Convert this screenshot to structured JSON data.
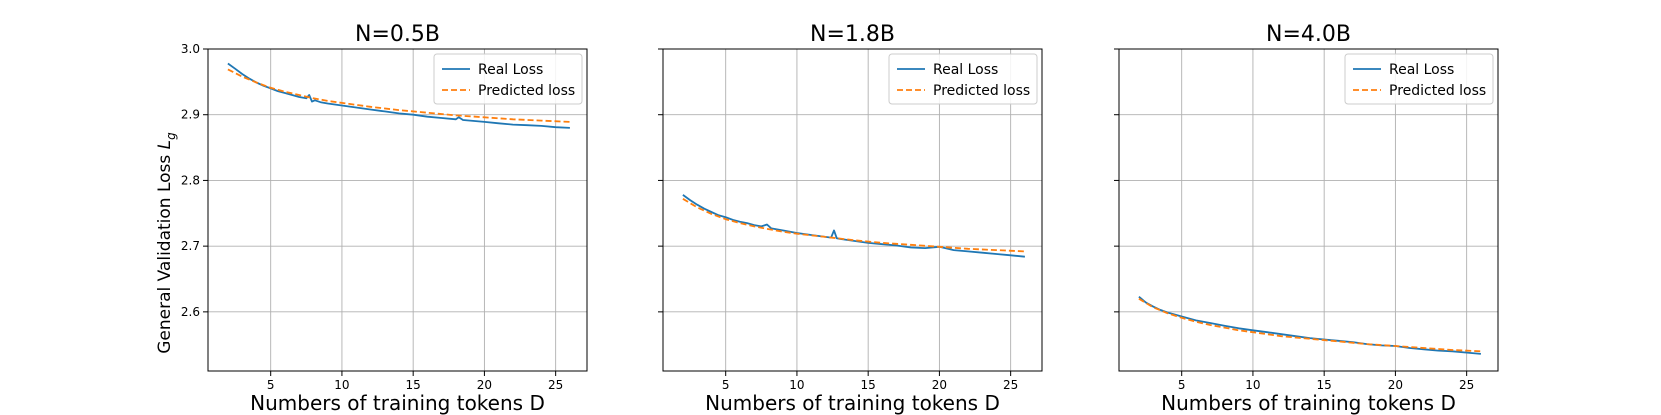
{
  "colors": {
    "real": "#1f77b4",
    "predicted": "#ff7f0e",
    "grid": "#b0b0b0",
    "frame": "#000000"
  },
  "figure": {
    "ylabel_text": "General Validation Loss ",
    "ylabel_symbol": "L",
    "ylabel_subscript": "g"
  },
  "chart_data": [
    {
      "type": "line",
      "title": "N=0.5B",
      "xlabel": "Numbers of training tokens D",
      "xlim": [
        0.6,
        27.2
      ],
      "ylim": [
        2.51,
        3.0
      ],
      "xticks": [
        5,
        10,
        15,
        20,
        25
      ],
      "xtick_labels": [
        "5",
        "10",
        "15",
        "20",
        "25"
      ],
      "yticks": [
        2.6,
        2.7,
        2.8,
        2.9,
        3.0
      ],
      "ytick_labels": [
        "2.6",
        "2.7",
        "2.8",
        "2.9",
        "3.0"
      ],
      "show_ytick_labels": true,
      "grid": true,
      "legend": "top-right",
      "series": [
        {
          "name": "Real Loss",
          "style": "solid",
          "x": [
            2.0,
            2.5,
            3.0,
            3.5,
            4.0,
            4.5,
            5.0,
            5.5,
            6.0,
            6.5,
            7.0,
            7.5,
            7.7,
            7.9,
            8.1,
            8.5,
            9.0,
            10.0,
            11.0,
            12.0,
            13.0,
            14.0,
            15.0,
            16.0,
            17.0,
            18.0,
            18.2,
            18.5,
            19.0,
            20.0,
            21.0,
            22.0,
            23.0,
            24.0,
            25.0,
            26.0
          ],
          "y": [
            2.978,
            2.97,
            2.962,
            2.955,
            2.949,
            2.944,
            2.94,
            2.936,
            2.933,
            2.93,
            2.927,
            2.925,
            2.93,
            2.92,
            2.922,
            2.919,
            2.917,
            2.914,
            2.911,
            2.908,
            2.905,
            2.902,
            2.9,
            2.897,
            2.895,
            2.893,
            2.896,
            2.892,
            2.891,
            2.889,
            2.887,
            2.885,
            2.884,
            2.883,
            2.881,
            2.88
          ]
        },
        {
          "name": "Predicted loss",
          "style": "dashed",
          "x": [
            2.0,
            3.0,
            4.0,
            5.0,
            6.0,
            7.0,
            8.0,
            9.0,
            10.0,
            12.0,
            14.0,
            16.0,
            18.0,
            20.0,
            22.0,
            24.0,
            26.0
          ],
          "y": [
            2.969,
            2.958,
            2.949,
            2.941,
            2.935,
            2.93,
            2.925,
            2.921,
            2.918,
            2.912,
            2.907,
            2.903,
            2.899,
            2.896,
            2.893,
            2.891,
            2.889
          ]
        }
      ]
    },
    {
      "type": "line",
      "title": "N=1.8B",
      "xlabel": "Numbers of training tokens D",
      "xlim": [
        0.6,
        27.2
      ],
      "ylim": [
        2.51,
        3.0
      ],
      "xticks": [
        5,
        10,
        15,
        20,
        25
      ],
      "xtick_labels": [
        "5",
        "10",
        "15",
        "20",
        "25"
      ],
      "yticks": [
        2.6,
        2.7,
        2.8,
        2.9,
        3.0
      ],
      "ytick_labels": [],
      "show_ytick_labels": false,
      "grid": true,
      "legend": "top-right",
      "series": [
        {
          "name": "Real Loss",
          "style": "solid",
          "x": [
            2.0,
            2.5,
            3.0,
            3.5,
            4.0,
            4.5,
            5.0,
            5.5,
            6.0,
            6.5,
            7.0,
            7.5,
            7.9,
            8.2,
            9.0,
            10.0,
            11.0,
            12.0,
            12.4,
            12.6,
            12.8,
            13.0,
            14.0,
            15.0,
            16.0,
            17.0,
            18.0,
            19.0,
            20.0,
            21.0,
            22.0,
            23.0,
            24.0,
            25.0,
            26.0
          ],
          "y": [
            2.778,
            2.77,
            2.763,
            2.757,
            2.752,
            2.747,
            2.744,
            2.74,
            2.737,
            2.735,
            2.732,
            2.73,
            2.733,
            2.727,
            2.724,
            2.72,
            2.717,
            2.714,
            2.713,
            2.724,
            2.712,
            2.711,
            2.708,
            2.705,
            2.703,
            2.701,
            2.698,
            2.697,
            2.699,
            2.694,
            2.692,
            2.69,
            2.688,
            2.686,
            2.684
          ]
        },
        {
          "name": "Predicted loss",
          "style": "dashed",
          "x": [
            2.0,
            3.0,
            4.0,
            5.0,
            6.0,
            7.0,
            8.0,
            9.0,
            10.0,
            12.0,
            14.0,
            16.0,
            18.0,
            20.0,
            22.0,
            24.0,
            26.0
          ],
          "y": [
            2.772,
            2.759,
            2.749,
            2.741,
            2.735,
            2.73,
            2.726,
            2.722,
            2.719,
            2.714,
            2.709,
            2.705,
            2.702,
            2.699,
            2.696,
            2.694,
            2.692
          ]
        }
      ]
    },
    {
      "type": "line",
      "title": "N=4.0B",
      "xlabel": "Numbers of training tokens D",
      "xlim": [
        0.6,
        27.2
      ],
      "ylim": [
        2.51,
        3.0
      ],
      "xticks": [
        5,
        10,
        15,
        20,
        25
      ],
      "xtick_labels": [
        "5",
        "10",
        "15",
        "20",
        "25"
      ],
      "yticks": [
        2.6,
        2.7,
        2.8,
        2.9,
        3.0
      ],
      "ytick_labels": [],
      "show_ytick_labels": false,
      "grid": true,
      "legend": "top-right",
      "series": [
        {
          "name": "Real Loss",
          "style": "solid",
          "x": [
            2.0,
            2.5,
            3.0,
            3.5,
            4.0,
            4.5,
            5.0,
            6.0,
            7.0,
            8.0,
            9.0,
            10.0,
            11.0,
            12.0,
            13.0,
            14.0,
            15.0,
            16.0,
            17.0,
            18.0,
            19.0,
            20.0,
            21.0,
            22.0,
            23.0,
            24.0,
            25.0,
            26.0
          ],
          "y": [
            2.623,
            2.614,
            2.608,
            2.603,
            2.599,
            2.596,
            2.593,
            2.587,
            2.583,
            2.579,
            2.575,
            2.572,
            2.569,
            2.566,
            2.563,
            2.56,
            2.558,
            2.556,
            2.554,
            2.551,
            2.549,
            2.548,
            2.545,
            2.543,
            2.541,
            2.54,
            2.538,
            2.536
          ]
        },
        {
          "name": "Predicted loss",
          "style": "dashed",
          "x": [
            2.0,
            3.0,
            4.0,
            5.0,
            6.0,
            7.0,
            8.0,
            9.0,
            10.0,
            12.0,
            14.0,
            16.0,
            18.0,
            20.0,
            22.0,
            24.0,
            26.0
          ],
          "y": [
            2.62,
            2.607,
            2.598,
            2.591,
            2.585,
            2.58,
            2.576,
            2.572,
            2.569,
            2.563,
            2.559,
            2.555,
            2.551,
            2.548,
            2.545,
            2.542,
            2.54
          ]
        }
      ]
    }
  ]
}
